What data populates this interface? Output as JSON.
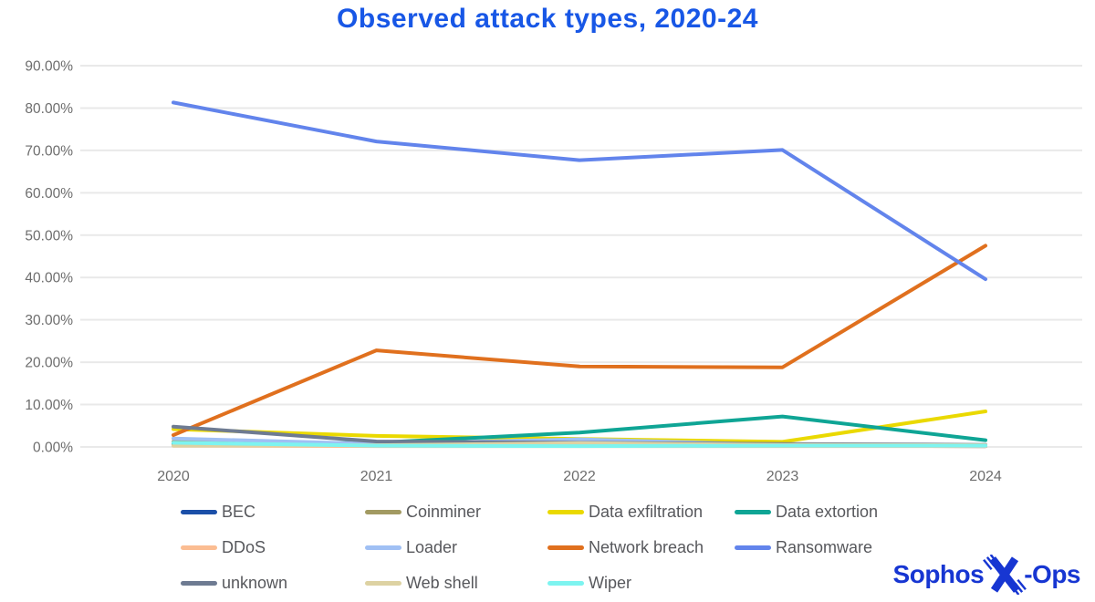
{
  "title": "Observed attack types, 2020-24",
  "chart_data": {
    "type": "line",
    "title": "Observed attack types, 2020-24",
    "categories": [
      "2020",
      "2021",
      "2022",
      "2023",
      "2024"
    ],
    "series": [
      {
        "name": "BEC",
        "color": "#1b4fa8",
        "values": [
          0.7,
          0.3,
          0.3,
          0.3,
          0.2
        ]
      },
      {
        "name": "Coinminer",
        "color": "#a29a62",
        "values": [
          1.2,
          0.9,
          0.5,
          0.3,
          0.2
        ]
      },
      {
        "name": "Data exfiltration",
        "color": "#ead900",
        "values": [
          4.2,
          2.6,
          1.9,
          1.2,
          8.4
        ]
      },
      {
        "name": "Data extortion",
        "color": "#0fa595",
        "values": [
          0.6,
          1.0,
          3.4,
          7.2,
          1.6
        ]
      },
      {
        "name": "DDoS",
        "color": "#fbbd92",
        "values": [
          0.3,
          0.2,
          0.2,
          0.2,
          0.2
        ]
      },
      {
        "name": "Loader",
        "color": "#a0c0f4",
        "values": [
          2.0,
          0.7,
          1.8,
          0.5,
          0.3
        ]
      },
      {
        "name": "Network breach",
        "color": "#e0701e",
        "values": [
          2.8,
          22.8,
          19.0,
          18.8,
          47.5
        ]
      },
      {
        "name": "Ransomware",
        "color": "#6284ec",
        "values": [
          81.3,
          72.1,
          67.7,
          70.1,
          39.6
        ]
      },
      {
        "name": "unknown",
        "color": "#6e7b92",
        "values": [
          4.8,
          1.3,
          1.0,
          0.7,
          0.5
        ]
      },
      {
        "name": "Web shell",
        "color": "#ddd2a2",
        "values": [
          0.3,
          0.4,
          0.9,
          0.5,
          0.4
        ]
      },
      {
        "name": "Wiper",
        "color": "#7df4f0",
        "values": [
          1.0,
          0.3,
          0.2,
          0.3,
          0.3
        ]
      }
    ],
    "ylim": [
      0,
      90
    ],
    "yticks": [
      "0.00%",
      "10.00%",
      "20.00%",
      "30.00%",
      "40.00%",
      "50.00%",
      "60.00%",
      "70.00%",
      "80.00%",
      "90.00%"
    ],
    "grid": true,
    "legend_position": "bottom"
  },
  "colors": {
    "title": "#1857e6",
    "axis_label": "#6d6d6d",
    "gridline": "#e9e9e9",
    "legend_text": "#57585c",
    "logo": "#1736d2",
    "background": "#ffffff"
  },
  "logo": {
    "text_prefix": "Sophos",
    "text_suffix": "-Ops",
    "alt": "Sophos X-Ops"
  }
}
